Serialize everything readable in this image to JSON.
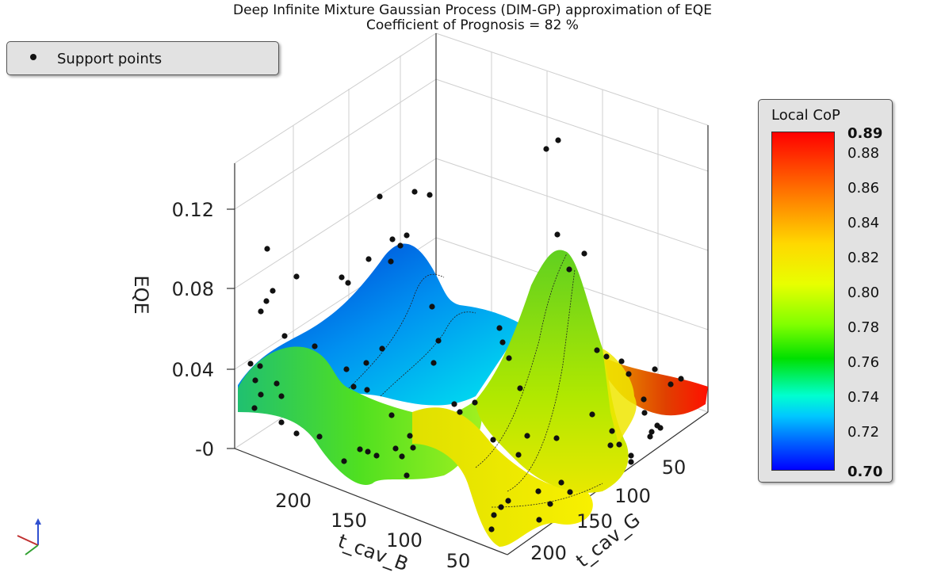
{
  "chart_data": {
    "type": "surface3d",
    "title": "Deep Infinite Mixture Gaussian Process (DIM-GP) approximation of EQE",
    "subtitle": "Coefficient of Prognosis = 82 %",
    "zlabel": "EQE",
    "xlabel": "t_cav_B",
    "ylabel": "t_cav_G",
    "z_ticks": [
      "0.12",
      "0.08",
      "0.04",
      "-0"
    ],
    "x_ticks": [
      "200",
      "150",
      "100",
      "50"
    ],
    "y_ticks": [
      "200",
      "150",
      "100",
      "50"
    ],
    "legend": {
      "label": "Support points",
      "placement": "top-left"
    },
    "colorbar": {
      "title": "Local CoP",
      "max": "0.89",
      "min": "0.70",
      "ticks": [
        "0.88",
        "0.86",
        "0.84",
        "0.82",
        "0.80",
        "0.78",
        "0.76",
        "0.74",
        "0.72"
      ],
      "colors": [
        "#ff0000",
        "#ff7000",
        "#ffd800",
        "#e8ff00",
        "#80ff00",
        "#00e000",
        "#00ffd0",
        "#00c8ff",
        "#0060ff",
        "#0000ff"
      ]
    }
  }
}
